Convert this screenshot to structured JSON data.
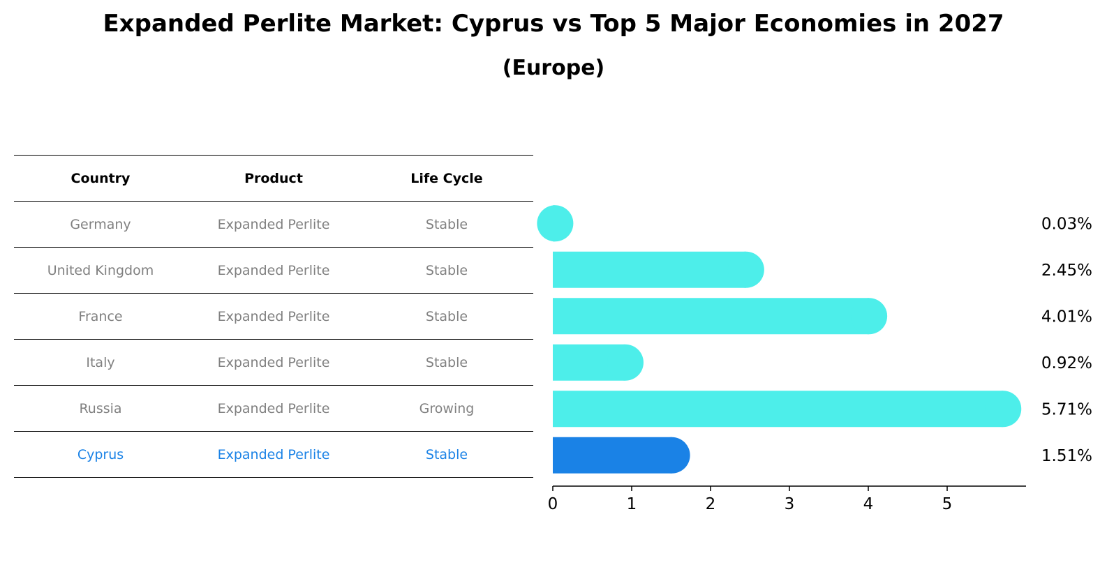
{
  "title": "Expanded Perlite Market: Cyprus vs Top 5 Major Economies in 2027",
  "subtitle": "(Europe)",
  "table": {
    "headers": [
      "Country",
      "Product",
      "Life Cycle"
    ],
    "rows": [
      [
        "Germany",
        "Expanded Perlite",
        "Stable"
      ],
      [
        "United Kingdom",
        "Expanded Perlite",
        "Stable"
      ],
      [
        "France",
        "Expanded Perlite",
        "Stable"
      ],
      [
        "Italy",
        "Expanded Perlite",
        "Stable"
      ],
      [
        "Russia",
        "Expanded Perlite",
        "Growing"
      ],
      [
        "Cyprus",
        "Expanded Perlite",
        "Stable"
      ]
    ],
    "highlight_row": 5
  },
  "colors": {
    "bar": "#4deeea",
    "highlight_bar": "#1a82e6",
    "table_text": "#808080",
    "highlight_text": "#1a82e6"
  },
  "chart_data": {
    "type": "bar",
    "orientation": "horizontal",
    "categories": [
      "Germany",
      "United Kingdom",
      "France",
      "Italy",
      "Russia",
      "Cyprus"
    ],
    "values": [
      0.03,
      2.45,
      4.01,
      0.92,
      5.71,
      1.51
    ],
    "value_labels": [
      "0.03%",
      "2.45%",
      "4.01%",
      "0.92%",
      "5.71%",
      "1.51%"
    ],
    "highlight_index": 5,
    "xlim": [
      0,
      6
    ],
    "xticks": [
      0,
      1,
      2,
      3,
      4,
      5
    ],
    "xlabel": "",
    "ylabel": "",
    "grid": false,
    "legend": "none"
  }
}
